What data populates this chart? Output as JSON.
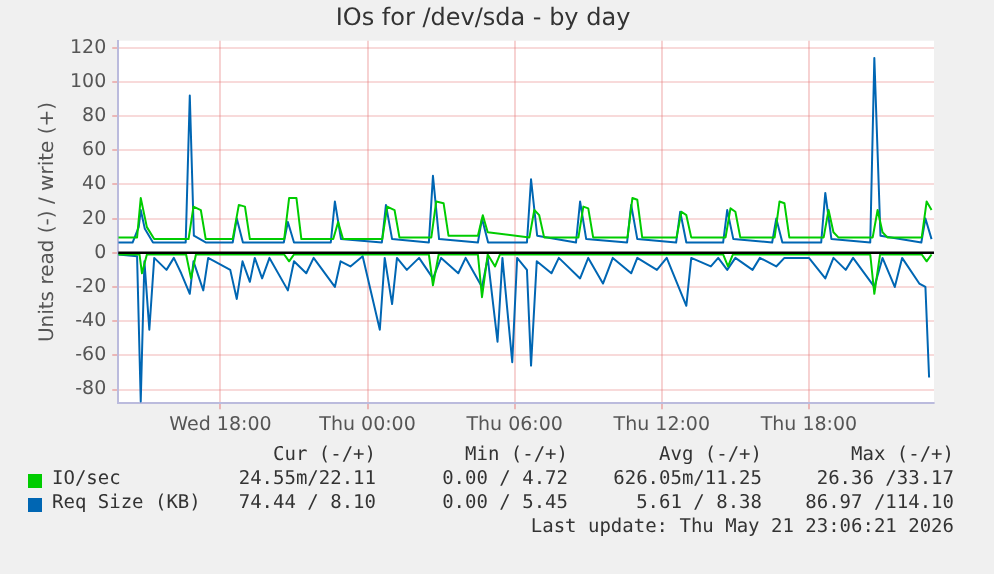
{
  "chart_data": {
    "type": "line",
    "title": "IOs for /dev/sda - by day",
    "ylabel": "Units read (-) / write (+)",
    "xlim": [
      "2026-05-20T13:50",
      "2026-05-21T23:06"
    ],
    "xticks": [
      {
        "value": "2026-05-20T18:00",
        "label": "Wed 18:00"
      },
      {
        "value": "2026-05-21T00:00",
        "label": "Thu 00:00"
      },
      {
        "value": "2026-05-21T06:00",
        "label": "Thu 06:00"
      },
      {
        "value": "2026-05-21T12:00",
        "label": "Thu 12:00"
      },
      {
        "value": "2026-05-21T18:00",
        "label": "Thu 18:00"
      }
    ],
    "ylim": [
      -88,
      124
    ],
    "yticks": [
      -80,
      -60,
      -40,
      -20,
      0,
      20,
      40,
      60,
      80,
      100,
      120
    ],
    "grid": true,
    "legend": "bottom",
    "marker": "none",
    "line_style": "solid",
    "ref_lines": [
      {
        "axis": "y",
        "value": 0,
        "color": "#000000"
      }
    ],
    "series": [
      {
        "name": "IO/sec",
        "color": "#00cc00",
        "x": [
          "2026-05-20T13:50",
          "2026-05-20T14:36",
          "2026-05-20T14:45",
          "2026-05-20T15:00",
          "2026-05-20T15:18",
          "2026-05-20T16:42",
          "2026-05-20T16:54",
          "2026-05-20T17:12",
          "2026-05-20T17:24",
          "2026-05-20T18:30",
          "2026-05-20T18:45",
          "2026-05-20T19:00",
          "2026-05-20T19:12",
          "2026-05-20T20:36",
          "2026-05-20T20:48",
          "2026-05-20T21:06",
          "2026-05-20T21:18",
          "2026-05-20T22:36",
          "2026-05-20T22:48",
          "2026-05-20T23:00",
          "2026-05-21T00:36",
          "2026-05-21T00:48",
          "2026-05-21T01:06",
          "2026-05-21T01:18",
          "2026-05-21T02:36",
          "2026-05-21T02:48",
          "2026-05-21T03:06",
          "2026-05-21T03:18",
          "2026-05-21T04:30",
          "2026-05-21T04:42",
          "2026-05-21T04:54",
          "2026-05-21T06:36",
          "2026-05-21T06:48",
          "2026-05-21T07:00",
          "2026-05-21T07:12",
          "2026-05-21T08:36",
          "2026-05-21T08:48",
          "2026-05-21T09:00",
          "2026-05-21T09:12",
          "2026-05-21T10:36",
          "2026-05-21T10:48",
          "2026-05-21T11:00",
          "2026-05-21T11:12",
          "2026-05-21T12:36",
          "2026-05-21T12:48",
          "2026-05-21T13:00",
          "2026-05-21T13:12",
          "2026-05-21T14:36",
          "2026-05-21T14:48",
          "2026-05-21T15:00",
          "2026-05-21T15:12",
          "2026-05-21T16:36",
          "2026-05-21T16:48",
          "2026-05-21T17:00",
          "2026-05-21T17:12",
          "2026-05-21T18:36",
          "2026-05-21T18:48",
          "2026-05-21T19:00",
          "2026-05-21T19:12",
          "2026-05-21T20:36",
          "2026-05-21T20:48",
          "2026-05-21T21:00",
          "2026-05-21T21:12",
          "2026-05-21T22:36",
          "2026-05-21T22:48",
          "2026-05-21T23:00"
        ],
        "values": [
          9,
          9,
          32,
          15,
          8,
          8,
          27,
          25,
          8,
          8,
          28,
          27,
          8,
          8,
          32,
          32,
          8,
          8,
          18,
          8,
          8,
          27,
          25,
          9,
          9,
          30,
          29,
          10,
          10,
          22,
          12,
          9,
          25,
          22,
          9,
          9,
          27,
          26,
          9,
          9,
          32,
          31,
          9,
          9,
          24,
          22,
          9,
          9,
          26,
          24,
          9,
          9,
          30,
          29,
          9,
          9,
          25,
          12,
          9,
          9,
          25,
          12,
          9,
          9,
          30,
          25
        ]
      },
      {
        "name": "Req Size (KB)",
        "color": "#0066b3",
        "x": [
          "2026-05-20T13:50",
          "2026-05-20T14:25",
          "2026-05-20T14:40",
          "2026-05-20T14:45",
          "2026-05-20T14:55",
          "2026-05-20T15:15",
          "2026-05-20T16:35",
          "2026-05-20T16:45",
          "2026-05-20T16:55",
          "2026-05-20T17:25",
          "2026-05-20T18:30",
          "2026-05-20T18:40",
          "2026-05-20T18:55",
          "2026-05-20T20:35",
          "2026-05-20T20:45",
          "2026-05-20T21:00",
          "2026-05-20T22:30",
          "2026-05-20T22:40",
          "2026-05-20T22:55",
          "2026-05-21T00:35",
          "2026-05-21T00:45",
          "2026-05-21T01:00",
          "2026-05-21T02:30",
          "2026-05-21T02:40",
          "2026-05-21T02:55",
          "2026-05-21T04:30",
          "2026-05-21T04:40",
          "2026-05-21T04:55",
          "2026-05-21T06:30",
          "2026-05-21T06:40",
          "2026-05-21T06:55",
          "2026-05-21T08:30",
          "2026-05-21T08:40",
          "2026-05-21T08:55",
          "2026-05-21T10:35",
          "2026-05-21T10:45",
          "2026-05-21T11:00",
          "2026-05-21T12:35",
          "2026-05-21T12:45",
          "2026-05-21T13:00",
          "2026-05-21T14:30",
          "2026-05-21T14:40",
          "2026-05-21T14:55",
          "2026-05-21T16:30",
          "2026-05-21T16:40",
          "2026-05-21T16:55",
          "2026-05-21T18:30",
          "2026-05-21T18:40",
          "2026-05-21T18:55",
          "2026-05-21T20:30",
          "2026-05-21T20:40",
          "2026-05-21T20:55",
          "2026-05-21T22:35",
          "2026-05-21T22:45",
          "2026-05-21T23:00"
        ],
        "values": [
          6,
          6,
          15,
          25,
          14,
          6,
          6,
          92,
          10,
          6,
          6,
          20,
          6,
          6,
          18,
          6,
          6,
          30,
          8,
          6,
          28,
          8,
          6,
          45,
          8,
          6,
          20,
          6,
          6,
          43,
          10,
          6,
          30,
          8,
          6,
          28,
          8,
          6,
          24,
          6,
          6,
          25,
          8,
          6,
          20,
          6,
          6,
          35,
          8,
          6,
          114,
          10,
          6,
          20,
          8
        ]
      },
      {
        "color": "#00cc00",
        "x": [
          "2026-05-20T13:50",
          "2026-05-20T14:42",
          "2026-05-20T14:48",
          "2026-05-20T15:00",
          "2026-05-20T16:36",
          "2026-05-20T16:48",
          "2026-05-20T17:00",
          "2026-05-20T20:36",
          "2026-05-20T20:48",
          "2026-05-20T21:00",
          "2026-05-21T02:30",
          "2026-05-21T02:40",
          "2026-05-21T02:54",
          "2026-05-21T04:30",
          "2026-05-21T04:40",
          "2026-05-21T04:54",
          "2026-05-21T05:12",
          "2026-05-21T05:24",
          "2026-05-21T14:30",
          "2026-05-21T14:42",
          "2026-05-21T14:54",
          "2026-05-21T20:30",
          "2026-05-21T20:40",
          "2026-05-21T20:54",
          "2026-05-21T22:36",
          "2026-05-21T22:48",
          "2026-05-21T23:00"
        ],
        "values": [
          -1,
          -1,
          -12,
          -1,
          -1,
          -15,
          -1,
          -1,
          -5,
          -1,
          -1,
          -19,
          -1,
          -1,
          -26,
          -1,
          -8,
          -1,
          -1,
          -8,
          -1,
          -1,
          -24,
          -1,
          -1,
          -5,
          -1
        ]
      },
      {
        "color": "#0066b3",
        "x": [
          "2026-05-20T13:50",
          "2026-05-20T14:36",
          "2026-05-20T14:45",
          "2026-05-20T14:54",
          "2026-05-20T15:06",
          "2026-05-20T15:18",
          "2026-05-20T15:48",
          "2026-05-20T16:06",
          "2026-05-20T16:24",
          "2026-05-20T16:45",
          "2026-05-20T16:54",
          "2026-05-20T17:18",
          "2026-05-20T17:30",
          "2026-05-20T18:24",
          "2026-05-20T18:40",
          "2026-05-20T18:54",
          "2026-05-20T19:12",
          "2026-05-20T19:24",
          "2026-05-20T19:42",
          "2026-05-20T20:00",
          "2026-05-20T20:45",
          "2026-05-20T21:00",
          "2026-05-20T21:30",
          "2026-05-20T21:48",
          "2026-05-20T22:40",
          "2026-05-20T22:54",
          "2026-05-20T23:18",
          "2026-05-20T23:48",
          "2026-05-21T00:30",
          "2026-05-21T00:42",
          "2026-05-21T01:00",
          "2026-05-21T01:12",
          "2026-05-21T01:36",
          "2026-05-21T02:06",
          "2026-05-21T02:40",
          "2026-05-21T03:00",
          "2026-05-21T03:42",
          "2026-05-21T04:00",
          "2026-05-21T04:40",
          "2026-05-21T04:54",
          "2026-05-21T05:18",
          "2026-05-21T05:30",
          "2026-05-21T05:54",
          "2026-05-21T06:06",
          "2026-05-21T06:30",
          "2026-05-21T06:40",
          "2026-05-21T06:54",
          "2026-05-21T07:30",
          "2026-05-21T07:48",
          "2026-05-21T08:40",
          "2026-05-21T09:00",
          "2026-05-21T09:36",
          "2026-05-21T10:00",
          "2026-05-21T10:45",
          "2026-05-21T11:00",
          "2026-05-21T11:48",
          "2026-05-21T12:12",
          "2026-05-21T13:00",
          "2026-05-21T13:12",
          "2026-05-21T14:00",
          "2026-05-21T14:18",
          "2026-05-21T14:40",
          "2026-05-21T15:00",
          "2026-05-21T15:42",
          "2026-05-21T16:00",
          "2026-05-21T16:40",
          "2026-05-21T17:00",
          "2026-05-21T18:00",
          "2026-05-21T18:40",
          "2026-05-21T19:00",
          "2026-05-21T19:30",
          "2026-05-21T19:48",
          "2026-05-21T20:40",
          "2026-05-21T21:00",
          "2026-05-21T21:30",
          "2026-05-21T21:48",
          "2026-05-21T22:30",
          "2026-05-21T22:45",
          "2026-05-21T22:54"
        ],
        "values": [
          -1,
          -2,
          -87,
          -5,
          -45,
          -3,
          -10,
          -3,
          -12,
          -24,
          -5,
          -22,
          -3,
          -10,
          -27,
          -5,
          -17,
          -3,
          -15,
          -3,
          -22,
          -5,
          -12,
          -3,
          -20,
          -5,
          -8,
          -2,
          -45,
          -3,
          -30,
          -3,
          -10,
          -3,
          -15,
          -3,
          -12,
          -3,
          -20,
          -3,
          -52,
          -3,
          -64,
          -3,
          -10,
          -66,
          -5,
          -12,
          -3,
          -15,
          -3,
          -18,
          -3,
          -12,
          -3,
          -10,
          -3,
          -31,
          -3,
          -8,
          -3,
          -10,
          -3,
          -10,
          -3,
          -8,
          -3,
          -3,
          -15,
          -3,
          -10,
          -3,
          -20,
          -3,
          -20,
          -3,
          -18,
          -20,
          -73
        ]
      }
    ],
    "annotations": [
      "Cur (-/+)",
      "Min (-/+)",
      "Avg (-/+)",
      "Max (-/+)",
      "24.55m/22.11",
      "0.00 / 4.72",
      "626.05m/11.25",
      "26.36 /33.17",
      "74.44 / 8.10",
      "0.00 / 5.45",
      "5.61 / 8.38",
      "86.97 /114.10",
      "Last update: Thu May 21 23:06:21 2026"
    ]
  }
}
